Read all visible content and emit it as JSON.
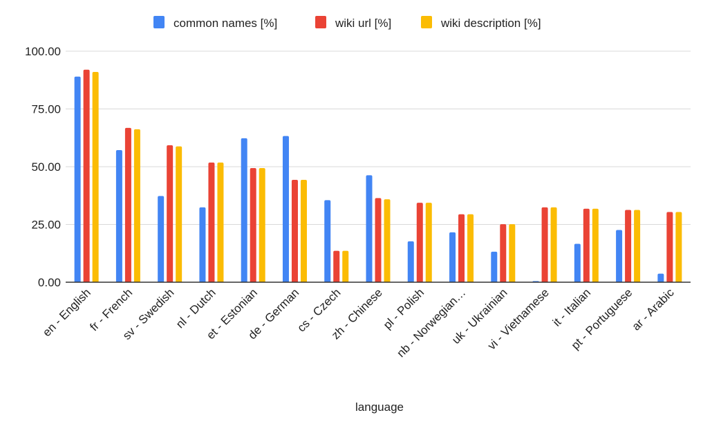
{
  "chart_data": {
    "type": "bar",
    "title": "",
    "xlabel": "language",
    "ylabel": "",
    "ylim": [
      0,
      100
    ],
    "yticks": [
      "0.00",
      "25.00",
      "50.00",
      "75.00",
      "100.00"
    ],
    "ytick_values": [
      0,
      25,
      50,
      75,
      100
    ],
    "grid": true,
    "legend_position": "top-center",
    "categories": [
      "en - English",
      "fr - French",
      "sv - Swedish",
      "nl - Dutch",
      "et - Estonian",
      "de - German",
      "cs - Czech",
      "zh - Chinese",
      "pl - Polish",
      "nb - Norwegian…",
      "uk - Ukrainian",
      "vi - Vietnamese",
      "it - Italian",
      "pt - Portuguese",
      "ar - Arabic"
    ],
    "series": [
      {
        "name": "common names [%]",
        "color": "#4285F4",
        "values": [
          89,
          57.2,
          37.3,
          32.4,
          62.3,
          63.3,
          35.5,
          46.3,
          17.7,
          21.6,
          13.2,
          0.5,
          16.6,
          22.6,
          3.7
        ]
      },
      {
        "name": "wiki url [%]",
        "color": "#EA4335",
        "values": [
          92,
          66.8,
          59.3,
          51.8,
          49.4,
          44.3,
          13.6,
          36.4,
          34.4,
          29.4,
          25.1,
          32.4,
          31.8,
          31.3,
          30.4
        ]
      },
      {
        "name": "wiki description [%]",
        "color": "#FBBC04",
        "values": [
          91,
          66.2,
          58.8,
          51.8,
          49.4,
          44.3,
          13.6,
          35.9,
          34.4,
          29.4,
          25.1,
          32.4,
          31.8,
          31.3,
          30.4
        ]
      }
    ]
  },
  "colors": {
    "grid": "#d9d9d9",
    "axis": "#333333",
    "text": "#222222"
  }
}
